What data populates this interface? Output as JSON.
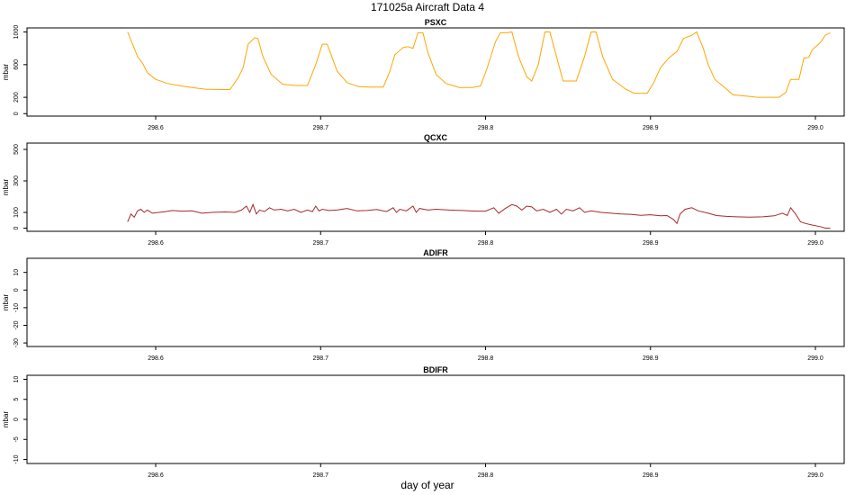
{
  "chart_data": {
    "type": "line",
    "title": "171025a    Aircraft Data 4",
    "xlabel": "day of year",
    "x_ticks": [
      "298.6",
      "298.7",
      "298.8",
      "298.9",
      "299.0"
    ],
    "panels": [
      {
        "name": "PSXC",
        "ylabel": "mbar",
        "color": "#FFA500",
        "xlim": [
          298.52,
          299.0
        ],
        "ylim": [
          -30,
          1050
        ],
        "y_ticks": [
          "0",
          "200",
          "600",
          "1000"
        ],
        "y_tick_values": [
          0,
          200,
          600,
          1000
        ],
        "points": [
          [
            298.583,
            1000
          ],
          [
            298.586,
            850
          ],
          [
            298.589,
            700
          ],
          [
            298.592,
            620
          ],
          [
            298.595,
            500
          ],
          [
            298.6,
            420
          ],
          [
            298.607,
            370
          ],
          [
            298.615,
            340
          ],
          [
            298.622,
            320
          ],
          [
            298.63,
            300
          ],
          [
            298.64,
            295
          ],
          [
            298.645,
            295
          ],
          [
            298.65,
            440
          ],
          [
            298.653,
            560
          ],
          [
            298.656,
            850
          ],
          [
            298.66,
            930
          ],
          [
            298.662,
            920
          ],
          [
            298.665,
            700
          ],
          [
            298.67,
            480
          ],
          [
            298.677,
            360
          ],
          [
            298.685,
            345
          ],
          [
            298.692,
            345
          ],
          [
            298.697,
            600
          ],
          [
            298.701,
            850
          ],
          [
            298.704,
            850
          ],
          [
            298.71,
            520
          ],
          [
            298.716,
            380
          ],
          [
            298.723,
            330
          ],
          [
            298.73,
            325
          ],
          [
            298.738,
            325
          ],
          [
            298.742,
            520
          ],
          [
            298.745,
            720
          ],
          [
            298.75,
            810
          ],
          [
            298.753,
            820
          ],
          [
            298.756,
            800
          ],
          [
            298.759,
            990
          ],
          [
            298.762,
            990
          ],
          [
            298.765,
            750
          ],
          [
            298.77,
            480
          ],
          [
            298.776,
            370
          ],
          [
            298.784,
            320
          ],
          [
            298.792,
            320
          ],
          [
            298.797,
            340
          ],
          [
            298.801,
            560
          ],
          [
            298.806,
            880
          ],
          [
            298.809,
            990
          ],
          [
            298.813,
            990
          ],
          [
            298.816,
            1000
          ],
          [
            298.82,
            700
          ],
          [
            298.825,
            450
          ],
          [
            298.828,
            400
          ],
          [
            298.832,
            600
          ],
          [
            298.836,
            1000
          ],
          [
            298.839,
            1000
          ],
          [
            298.843,
            700
          ],
          [
            298.847,
            400
          ],
          [
            298.855,
            400
          ],
          [
            298.86,
            700
          ],
          [
            298.864,
            1000
          ],
          [
            298.867,
            1000
          ],
          [
            298.871,
            700
          ],
          [
            298.877,
            420
          ],
          [
            298.885,
            300
          ],
          [
            298.89,
            250
          ],
          [
            298.898,
            250
          ],
          [
            298.902,
            380
          ],
          [
            298.906,
            560
          ],
          [
            298.911,
            680
          ],
          [
            298.916,
            760
          ],
          [
            298.92,
            920
          ],
          [
            298.925,
            960
          ],
          [
            298.928,
            1000
          ],
          [
            298.932,
            800
          ],
          [
            298.935,
            600
          ],
          [
            298.939,
            420
          ],
          [
            298.945,
            320
          ],
          [
            298.95,
            230
          ],
          [
            298.958,
            215
          ],
          [
            298.965,
            200
          ],
          [
            298.978,
            200
          ],
          [
            298.982,
            260
          ],
          [
            298.985,
            420
          ],
          [
            298.99,
            420
          ],
          [
            298.993,
            680
          ],
          [
            298.996,
            690
          ],
          [
            298.998,
            780
          ],
          [
            299.003,
            870
          ],
          [
            299.006,
            960
          ],
          [
            299.009,
            990
          ]
        ]
      },
      {
        "name": "QCXC",
        "ylabel": "mbar",
        "color": "#A52A2A",
        "xlim": [
          298.52,
          299.0
        ],
        "ylim": [
          -20,
          540
        ],
        "y_ticks": [
          "0",
          "100",
          "300",
          "500"
        ],
        "y_tick_values": [
          0,
          100,
          300,
          500
        ],
        "points": [
          [
            298.583,
            40
          ],
          [
            298.585,
            90
          ],
          [
            298.587,
            70
          ],
          [
            298.589,
            110
          ],
          [
            298.591,
            120
          ],
          [
            298.593,
            100
          ],
          [
            298.595,
            115
          ],
          [
            298.598,
            95
          ],
          [
            298.602,
            100
          ],
          [
            298.606,
            105
          ],
          [
            298.61,
            112
          ],
          [
            298.616,
            108
          ],
          [
            298.622,
            110
          ],
          [
            298.628,
            95
          ],
          [
            298.634,
            100
          ],
          [
            298.642,
            103
          ],
          [
            298.648,
            100
          ],
          [
            298.652,
            115
          ],
          [
            298.655,
            140
          ],
          [
            298.657,
            100
          ],
          [
            298.659,
            150
          ],
          [
            298.661,
            90
          ],
          [
            298.663,
            115
          ],
          [
            298.666,
            105
          ],
          [
            298.669,
            130
          ],
          [
            298.672,
            115
          ],
          [
            298.676,
            120
          ],
          [
            298.68,
            110
          ],
          [
            298.684,
            120
          ],
          [
            298.688,
            100
          ],
          [
            298.692,
            115
          ],
          [
            298.695,
            105
          ],
          [
            298.697,
            140
          ],
          [
            298.699,
            110
          ],
          [
            298.701,
            120
          ],
          [
            298.705,
            112
          ],
          [
            298.71,
            115
          ],
          [
            298.716,
            125
          ],
          [
            298.722,
            110
          ],
          [
            298.728,
            112
          ],
          [
            298.734,
            118
          ],
          [
            298.74,
            105
          ],
          [
            298.744,
            130
          ],
          [
            298.746,
            100
          ],
          [
            298.748,
            120
          ],
          [
            298.752,
            110
          ],
          [
            298.756,
            140
          ],
          [
            298.758,
            100
          ],
          [
            298.76,
            125
          ],
          [
            298.765,
            115
          ],
          [
            298.77,
            120
          ],
          [
            298.778,
            115
          ],
          [
            298.786,
            112
          ],
          [
            298.794,
            108
          ],
          [
            298.8,
            108
          ],
          [
            298.805,
            130
          ],
          [
            298.808,
            95
          ],
          [
            298.812,
            125
          ],
          [
            298.816,
            150
          ],
          [
            298.819,
            140
          ],
          [
            298.822,
            115
          ],
          [
            298.825,
            140
          ],
          [
            298.828,
            135
          ],
          [
            298.831,
            110
          ],
          [
            298.835,
            120
          ],
          [
            298.839,
            100
          ],
          [
            298.843,
            120
          ],
          [
            298.846,
            90
          ],
          [
            298.849,
            120
          ],
          [
            298.853,
            110
          ],
          [
            298.857,
            130
          ],
          [
            298.86,
            100
          ],
          [
            298.864,
            110
          ],
          [
            298.87,
            100
          ],
          [
            298.876,
            95
          ],
          [
            298.882,
            90
          ],
          [
            298.888,
            88
          ],
          [
            298.894,
            82
          ],
          [
            298.9,
            85
          ],
          [
            298.906,
            78
          ],
          [
            298.91,
            80
          ],
          [
            298.914,
            55
          ],
          [
            298.916,
            30
          ],
          [
            298.918,
            90
          ],
          [
            298.921,
            120
          ],
          [
            298.925,
            130
          ],
          [
            298.929,
            110
          ],
          [
            298.935,
            95
          ],
          [
            298.94,
            80
          ],
          [
            298.946,
            75
          ],
          [
            298.952,
            72
          ],
          [
            298.96,
            70
          ],
          [
            298.968,
            72
          ],
          [
            298.975,
            78
          ],
          [
            298.98,
            95
          ],
          [
            298.983,
            80
          ],
          [
            298.985,
            130
          ],
          [
            298.988,
            90
          ],
          [
            298.991,
            40
          ],
          [
            298.994,
            30
          ],
          [
            298.998,
            20
          ],
          [
            299.003,
            10
          ],
          [
            299.006,
            0
          ],
          [
            299.009,
            0
          ]
        ]
      },
      {
        "name": "ADIFR",
        "ylabel": "mbar",
        "color": "#000000",
        "xlim": [
          298.52,
          299.0
        ],
        "ylim": [
          -32,
          18
        ],
        "y_ticks": [
          "10",
          "0",
          "-10",
          "-20",
          "-30"
        ],
        "y_tick_values": [
          10,
          0,
          -10,
          -20,
          -30
        ],
        "points": []
      },
      {
        "name": "BDIFR",
        "ylabel": "mbar",
        "color": "#000000",
        "xlim": [
          298.52,
          299.0
        ],
        "ylim": [
          -11,
          11
        ],
        "y_ticks": [
          "10",
          "5",
          "0",
          "-5",
          "-10"
        ],
        "y_tick_values": [
          10,
          5,
          0,
          -5,
          -10
        ],
        "points": []
      }
    ]
  }
}
